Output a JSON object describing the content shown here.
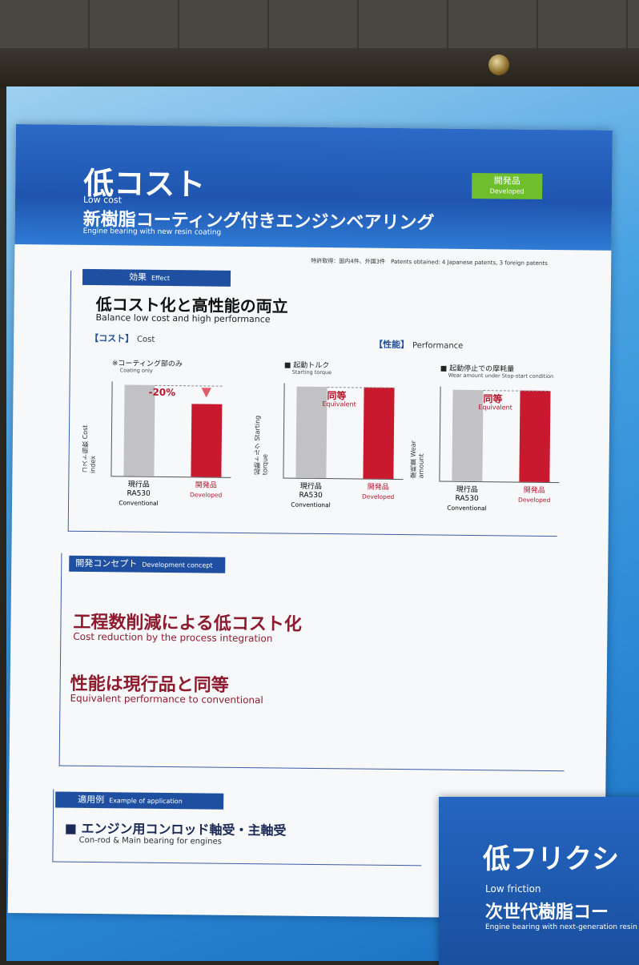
{
  "poster": {
    "title_jp": "低コスト",
    "title_en": "Low cost",
    "subtitle_jp": "新樹脂コーティング付きエンジンベアリング",
    "subtitle_en": "Engine bearing with new resin coating",
    "badge_jp": "開発品",
    "badge_en": "Developed",
    "patents": "特許取得：国内4件、外国3件　Patents obtained: 4 Japanese patents, 3 foreign patents",
    "effect": {
      "bar_jp": "効果",
      "bar_en": "Effect",
      "headline_jp": "低コスト化と高性能の両立",
      "headline_en": "Balance low cost and high performance",
      "cost_label_jp": "【コスト】",
      "cost_label_en": "Cost",
      "perf_label_jp": "【性能】",
      "perf_label_en": "Performance"
    },
    "concept": {
      "bar_jp": "開発コンセプト",
      "bar_en": "Development concept",
      "point1_jp": "工程数削減による低コスト化",
      "point1_en": "Cost reduction by the process integration",
      "point2_jp": "性能は現行品と同等",
      "point2_en": "Equivalent performance to conventional"
    },
    "application": {
      "bar_jp": "適用例",
      "bar_en": "Example of application",
      "item_jp": "■ エンジン用コンロッド軸受・主軸受",
      "item_en": "Con-rod & Main bearing for engines"
    }
  },
  "chart_data": [
    {
      "type": "bar",
      "title": "※コーティング部のみ",
      "subtitle": "Coating only",
      "ylabel_jp": "コスト指数",
      "ylabel_en": "Cost index",
      "categories": [
        {
          "jp": "現行品",
          "model": "RA530",
          "en": "Conventional"
        },
        {
          "jp": "開発品",
          "model": "",
          "en": "Developed"
        }
      ],
      "values": [
        100,
        80
      ],
      "ylim": [
        0,
        100
      ],
      "annotation": "-20%",
      "colors": [
        "#c2c2c4",
        "#c8192f"
      ]
    },
    {
      "type": "bar",
      "title": "■ 起動トルク",
      "subtitle": "Starting torque",
      "ylabel_jp": "起動トルク",
      "ylabel_en": "Starting torque",
      "categories": [
        {
          "jp": "現行品",
          "model": "RA530",
          "en": "Conventional"
        },
        {
          "jp": "開発品",
          "model": "",
          "en": "Developed"
        }
      ],
      "values": [
        100,
        100
      ],
      "ylim": [
        0,
        100
      ],
      "annotation_jp": "同等",
      "annotation_en": "Equivalent",
      "colors": [
        "#c2c2c4",
        "#c8192f"
      ]
    },
    {
      "type": "bar",
      "title": "■ 起動停止での摩耗量",
      "subtitle": "Wear amount under Stop-start condition",
      "ylabel_jp": "摩耗量",
      "ylabel_en": "Wear amount",
      "categories": [
        {
          "jp": "現行品",
          "model": "RA530",
          "en": "Conventional"
        },
        {
          "jp": "開発品",
          "model": "",
          "en": "Developed"
        }
      ],
      "values": [
        100,
        100
      ],
      "ylim": [
        0,
        100
      ],
      "annotation_jp": "同等",
      "annotation_en": "Equivalent",
      "colors": [
        "#c2c2c4",
        "#c8192f"
      ]
    }
  ],
  "poster2": {
    "title_jp": "低フリクシ",
    "title_en": "Low friction",
    "subtitle_jp": "次世代樹脂コー",
    "subtitle_en": "Engine bearing with next-generation resin"
  }
}
